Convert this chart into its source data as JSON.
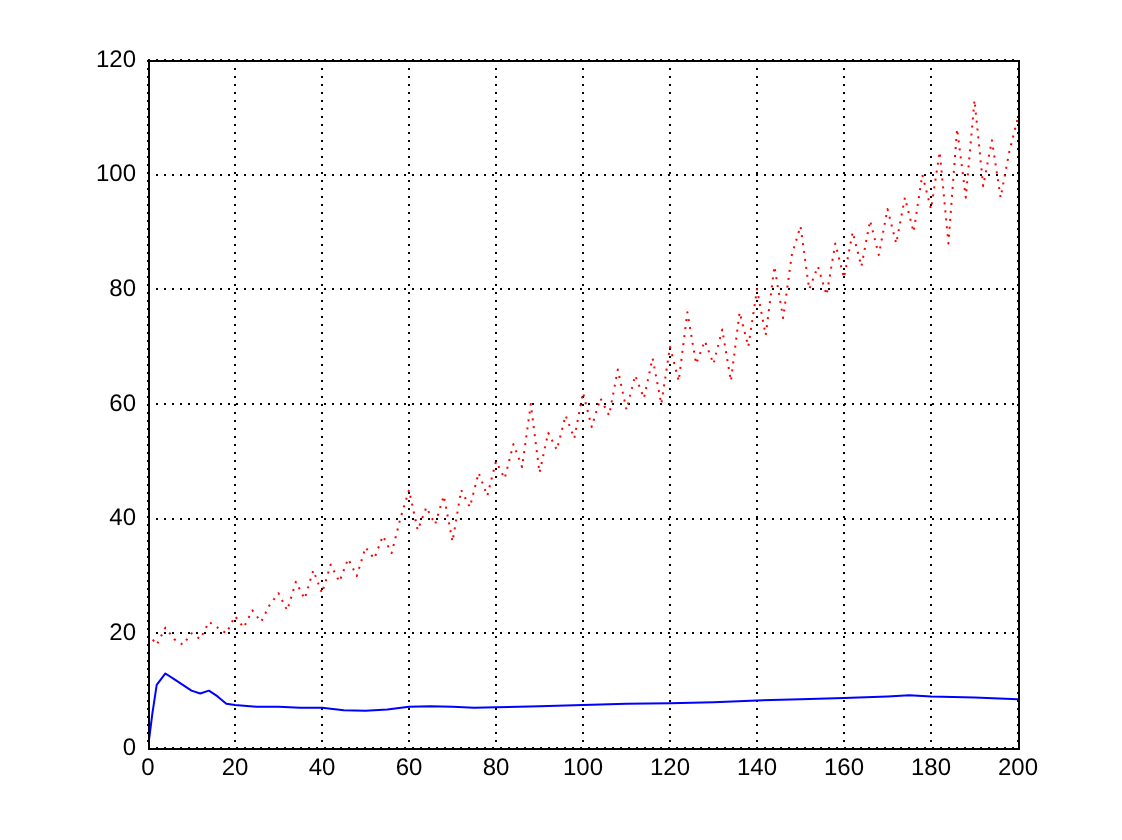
{
  "chart_data": {
    "type": "line",
    "x": [
      0,
      2,
      4,
      6,
      8,
      10,
      12,
      14,
      16,
      18,
      20,
      22,
      24,
      26,
      28,
      30,
      32,
      34,
      36,
      38,
      40,
      42,
      44,
      46,
      48,
      50,
      52,
      54,
      56,
      58,
      60,
      62,
      64,
      66,
      68,
      70,
      72,
      74,
      76,
      78,
      80,
      82,
      84,
      86,
      88,
      90,
      92,
      94,
      96,
      98,
      100,
      102,
      104,
      106,
      108,
      110,
      112,
      114,
      116,
      118,
      120,
      122,
      124,
      126,
      128,
      130,
      132,
      134,
      136,
      138,
      140,
      142,
      144,
      146,
      148,
      150,
      152,
      154,
      156,
      158,
      160,
      162,
      164,
      166,
      168,
      170,
      172,
      174,
      176,
      178,
      180,
      182,
      184,
      186,
      188,
      190,
      192,
      194,
      196,
      198,
      200
    ],
    "series": [
      {
        "color": "#ff0000",
        "line_style": "dotted",
        "values": [
          20,
          18,
          21,
          19,
          18,
          20,
          19,
          22,
          21,
          20,
          23,
          21,
          24,
          22,
          25,
          27,
          24,
          29,
          26,
          31,
          27,
          32,
          29,
          33,
          30,
          35,
          33,
          37,
          34,
          40,
          45,
          38,
          42,
          39,
          44,
          36,
          45,
          42,
          48,
          44,
          50,
          47,
          53,
          49,
          60,
          48,
          55,
          52,
          58,
          54,
          62,
          56,
          61,
          58,
          66,
          59,
          65,
          61,
          68,
          60,
          70,
          64,
          76,
          67,
          71,
          67,
          73,
          64,
          76,
          70,
          80,
          72,
          84,
          75,
          86,
          91,
          80,
          84,
          79,
          88,
          82,
          90,
          84,
          92,
          86,
          94,
          88,
          96,
          90,
          100,
          94,
          104,
          88,
          108,
          96,
          113,
          98,
          106,
          96,
          104,
          110
        ]
      },
      {
        "color": "#0000ff",
        "line_style": "solid",
        "x": [
          0,
          1,
          2,
          4,
          6,
          8,
          10,
          12,
          14,
          16,
          18,
          20,
          25,
          30,
          35,
          40,
          45,
          50,
          55,
          60,
          65,
          70,
          75,
          80,
          90,
          100,
          110,
          120,
          130,
          140,
          150,
          160,
          170,
          175,
          180,
          190,
          200
        ],
        "values": [
          0,
          6,
          11,
          13,
          12,
          11,
          10,
          9.5,
          10,
          9,
          7.7,
          7.5,
          7.2,
          7.2,
          7,
          7,
          6.6,
          6.5,
          6.7,
          7.2,
          7.3,
          7.2,
          7,
          7.1,
          7.3,
          7.5,
          7.7,
          7.8,
          8,
          8.3,
          8.5,
          8.7,
          9,
          9.2,
          9,
          8.8,
          8.5
        ]
      }
    ],
    "xlim": [
      0,
      200
    ],
    "xticks": [
      0,
      20,
      40,
      60,
      80,
      100,
      120,
      140,
      160,
      180,
      200
    ],
    "ylim": [
      0,
      120
    ],
    "yticks": [
      0,
      20,
      40,
      60,
      80,
      100,
      120
    ],
    "grid": true,
    "legend": false,
    "marker": "none"
  }
}
